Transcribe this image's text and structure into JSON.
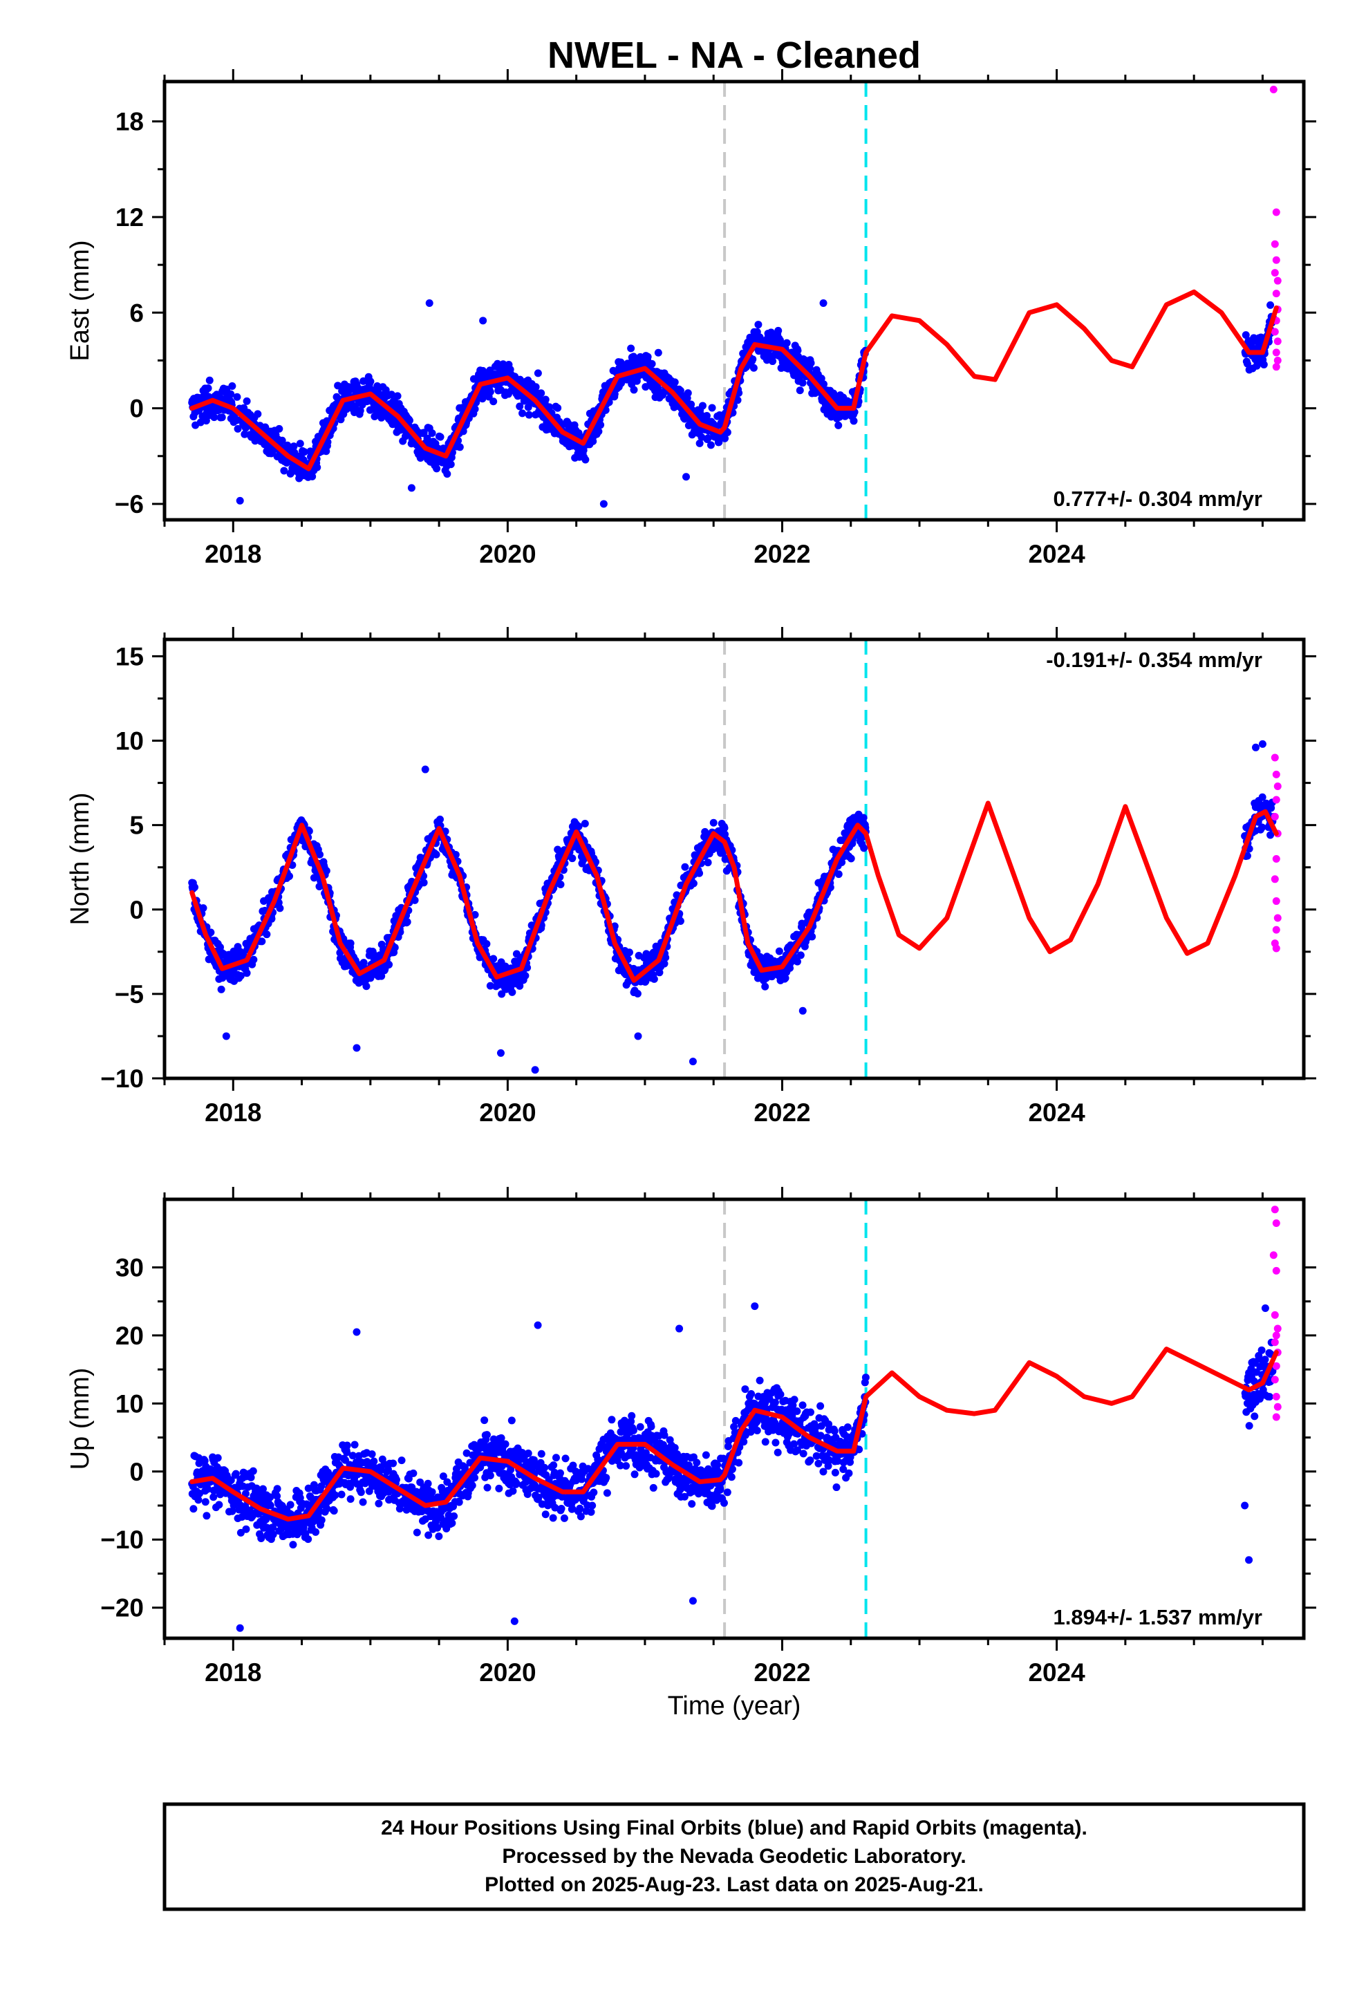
{
  "title": "NWEL  - NA - Cleaned",
  "xlabel": "Time (year)",
  "x_ticks": [
    2018,
    2020,
    2022,
    2024
  ],
  "xlim": [
    2017.5,
    2025.8
  ],
  "event_lines": [
    {
      "x": 2021.58,
      "color": "#c8c8c8",
      "style": "dashed"
    },
    {
      "x": 2022.61,
      "color": "#00e5ee",
      "style": "dashed"
    }
  ],
  "colors": {
    "final_orbits": "#0000ff",
    "rapid_orbits": "#ff00ff",
    "model": "#ff0000"
  },
  "footer": [
    "24 Hour Positions Using Final Orbits (blue) and Rapid Orbits (magenta).",
    "Processed by the Nevada Geodetic Laboratory.",
    "Plotted on 2025-Aug-23. Last data on 2025-Aug-21."
  ],
  "chart_data": [
    {
      "type": "scatter",
      "component": "East",
      "ylabel": "East (mm)",
      "ylim": [
        -7,
        20.5
      ],
      "y_ticks": [
        -6,
        0,
        6,
        12,
        18
      ],
      "rate_text": "0.777+/- 0.304 mm/yr",
      "rate_position": "bottom-right",
      "model_curve": {
        "x": [
          2017.7,
          2017.85,
          2018.0,
          2018.2,
          2018.4,
          2018.55,
          2018.8,
          2019.0,
          2019.2,
          2019.4,
          2019.55,
          2019.8,
          2020.0,
          2020.2,
          2020.4,
          2020.55,
          2020.8,
          2021.0,
          2021.2,
          2021.4,
          2021.55,
          2021.58,
          2021.7,
          2021.8,
          2022.0,
          2022.2,
          2022.4,
          2022.52,
          2022.61,
          2022.8,
          2023.0,
          2023.2,
          2023.4,
          2023.55,
          2023.8,
          2024.0,
          2024.2,
          2024.4,
          2024.55,
          2024.8,
          2025.0,
          2025.2,
          2025.4,
          2025.5,
          2025.6
        ],
        "y": [
          0.0,
          0.5,
          0.0,
          -1.5,
          -3.0,
          -3.8,
          0.5,
          0.9,
          -0.5,
          -2.5,
          -3.0,
          1.5,
          1.9,
          0.5,
          -1.5,
          -2.2,
          2.0,
          2.5,
          1.0,
          -1.0,
          -1.5,
          -1.2,
          2.5,
          4.0,
          3.7,
          2.0,
          0.0,
          0.0,
          3.5,
          5.8,
          5.5,
          4.0,
          2.0,
          1.8,
          6.0,
          6.5,
          5.0,
          3.0,
          2.6,
          6.5,
          7.3,
          6.0,
          3.5,
          3.5,
          6.3
        ]
      },
      "series": [
        {
          "name": "Final Orbits",
          "color": "#0000ff",
          "segments": [
            [
              2017.7,
              2022.61
            ],
            [
              2025.37,
              2025.58
            ]
          ],
          "noise": 1.4,
          "outliers": [
            [
              2019.43,
              6.6
            ],
            [
              2018.05,
              -5.8
            ],
            [
              2020.7,
              -6.0
            ],
            [
              2021.3,
              -4.3
            ],
            [
              2019.3,
              -5.0
            ],
            [
              2022.3,
              6.6
            ],
            [
              2019.82,
              5.5
            ],
            [
              2025.38,
              4.0
            ]
          ]
        },
        {
          "name": "Rapid Orbits",
          "color": "#ff00ff",
          "points": [
            [
              2025.58,
              20.0
            ],
            [
              2025.6,
              12.3
            ],
            [
              2025.59,
              10.3
            ],
            [
              2025.6,
              9.3
            ],
            [
              2025.59,
              8.5
            ],
            [
              2025.61,
              8.0
            ],
            [
              2025.6,
              7.2
            ],
            [
              2025.61,
              6.2
            ],
            [
              2025.6,
              5.5
            ],
            [
              2025.59,
              4.8
            ],
            [
              2025.61,
              4.2
            ],
            [
              2025.6,
              3.5
            ],
            [
              2025.61,
              3.0
            ],
            [
              2025.6,
              2.6
            ]
          ]
        }
      ]
    },
    {
      "type": "scatter",
      "component": "North",
      "ylabel": "North (mm)",
      "ylim": [
        -10,
        16
      ],
      "y_ticks": [
        -10,
        -5,
        0,
        5,
        10,
        15
      ],
      "rate_text": "-0.191+/- 0.354 mm/yr",
      "rate_position": "top-right",
      "model_curve": {
        "x": [
          2017.7,
          2017.8,
          2017.92,
          2018.1,
          2018.3,
          2018.5,
          2018.65,
          2018.78,
          2018.92,
          2019.1,
          2019.3,
          2019.5,
          2019.65,
          2019.78,
          2019.92,
          2020.1,
          2020.3,
          2020.5,
          2020.65,
          2020.78,
          2020.92,
          2021.1,
          2021.3,
          2021.5,
          2021.58,
          2021.65,
          2021.75,
          2021.85,
          2022.0,
          2022.2,
          2022.4,
          2022.55,
          2022.61,
          2022.7,
          2022.85,
          2023.0,
          2023.2,
          2023.5,
          2023.8,
          2023.95,
          2024.1,
          2024.3,
          2024.5,
          2024.8,
          2024.95,
          2025.1,
          2025.3,
          2025.45,
          2025.52,
          2025.6
        ],
        "y": [
          1.0,
          -1.5,
          -3.5,
          -3.0,
          0.5,
          5.0,
          2.0,
          -2.0,
          -3.8,
          -3.0,
          1.0,
          4.8,
          2.0,
          -2.0,
          -4.0,
          -3.5,
          1.0,
          4.6,
          2.0,
          -2.0,
          -4.2,
          -3.0,
          1.5,
          4.5,
          4.0,
          2.5,
          -2.0,
          -3.6,
          -3.4,
          -1.0,
          3.0,
          5.0,
          4.5,
          2.0,
          -1.5,
          -2.3,
          -0.5,
          6.3,
          -0.5,
          -2.5,
          -1.8,
          1.5,
          6.1,
          -0.5,
          -2.6,
          -2.0,
          2.0,
          5.5,
          5.8,
          4.5
        ]
      },
      "series": [
        {
          "name": "Final Orbits",
          "color": "#0000ff",
          "segments": [
            [
              2017.7,
              2022.61
            ],
            [
              2025.37,
              2025.58
            ]
          ],
          "noise": 1.3,
          "outliers": [
            [
              2018.9,
              -8.2
            ],
            [
              2019.95,
              -8.5
            ],
            [
              2020.2,
              -9.5
            ],
            [
              2021.35,
              -9.0
            ],
            [
              2019.4,
              8.3
            ],
            [
              2020.95,
              -7.5
            ],
            [
              2017.95,
              -7.5
            ],
            [
              2022.15,
              -6.0
            ],
            [
              2025.5,
              9.8
            ],
            [
              2025.45,
              9.6
            ]
          ]
        },
        {
          "name": "Rapid Orbits",
          "color": "#ff00ff",
          "points": [
            [
              2025.59,
              9.0
            ],
            [
              2025.6,
              8.0
            ],
            [
              2025.61,
              7.3
            ],
            [
              2025.6,
              6.5
            ],
            [
              2025.59,
              5.5
            ],
            [
              2025.61,
              4.5
            ],
            [
              2025.6,
              3.0
            ],
            [
              2025.59,
              1.8
            ],
            [
              2025.6,
              0.5
            ],
            [
              2025.61,
              -0.5
            ],
            [
              2025.6,
              -1.2
            ],
            [
              2025.59,
              -2.0
            ],
            [
              2025.6,
              -2.3
            ]
          ]
        }
      ]
    },
    {
      "type": "scatter",
      "component": "Up",
      "ylabel": "Up (mm)",
      "ylim": [
        -24.5,
        40
      ],
      "y_ticks": [
        -20,
        -10,
        0,
        10,
        20,
        30
      ],
      "rate_text": "1.894+/- 1.537 mm/yr",
      "rate_position": "bottom-right",
      "model_curve": {
        "x": [
          2017.7,
          2017.85,
          2018.0,
          2018.2,
          2018.4,
          2018.55,
          2018.8,
          2019.0,
          2019.2,
          2019.4,
          2019.55,
          2019.8,
          2020.0,
          2020.2,
          2020.4,
          2020.55,
          2020.8,
          2021.0,
          2021.2,
          2021.4,
          2021.55,
          2021.58,
          2021.7,
          2021.8,
          2022.0,
          2022.2,
          2022.4,
          2022.52,
          2022.61,
          2022.8,
          2023.0,
          2023.2,
          2023.4,
          2023.55,
          2023.8,
          2024.0,
          2024.2,
          2024.4,
          2024.55,
          2024.8,
          2025.0,
          2025.2,
          2025.4,
          2025.5,
          2025.6
        ],
        "y": [
          -1.5,
          -1.0,
          -3.0,
          -5.5,
          -7.0,
          -6.5,
          0.5,
          0.0,
          -2.5,
          -5.0,
          -4.5,
          2.0,
          1.5,
          -1.0,
          -3.0,
          -3.0,
          4.0,
          4.0,
          1.0,
          -1.5,
          -1.2,
          -0.5,
          6.0,
          9.0,
          8.0,
          5.0,
          3.0,
          3.0,
          11.0,
          14.5,
          11.0,
          9.0,
          8.5,
          9.0,
          16.0,
          14.0,
          11.0,
          10.0,
          11.0,
          18.0,
          16.0,
          14.0,
          12.0,
          13.0,
          17.5
        ]
      },
      "series": [
        {
          "name": "Final Orbits",
          "color": "#0000ff",
          "segments": [
            [
              2017.7,
              2022.61
            ],
            [
              2025.37,
              2025.58
            ]
          ],
          "noise": 5.2,
          "outliers": [
            [
              2018.05,
              -23.0
            ],
            [
              2020.05,
              -22.0
            ],
            [
              2020.22,
              21.5
            ],
            [
              2021.25,
              21.0
            ],
            [
              2021.8,
              24.3
            ],
            [
              2018.9,
              20.5
            ],
            [
              2025.4,
              -13.0
            ],
            [
              2025.37,
              -5.0
            ],
            [
              2021.35,
              -19.0
            ],
            [
              2025.52,
              24.0
            ]
          ]
        },
        {
          "name": "Rapid Orbits",
          "color": "#ff00ff",
          "points": [
            [
              2025.59,
              38.5
            ],
            [
              2025.6,
              36.5
            ],
            [
              2025.58,
              31.8
            ],
            [
              2025.6,
              29.5
            ],
            [
              2025.59,
              23.0
            ],
            [
              2025.61,
              21.0
            ],
            [
              2025.6,
              20.0
            ],
            [
              2025.59,
              19.0
            ],
            [
              2025.61,
              17.5
            ],
            [
              2025.6,
              15.5
            ],
            [
              2025.59,
              13.5
            ],
            [
              2025.6,
              11.0
            ],
            [
              2025.61,
              9.5
            ],
            [
              2025.6,
              8.0
            ]
          ]
        }
      ]
    }
  ]
}
